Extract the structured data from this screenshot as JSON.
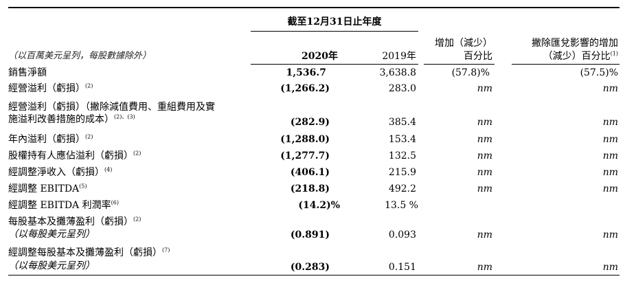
{
  "header": {
    "period_title": "截至12月31日止年度",
    "unit_note": "（以百萬美元呈列，每股數據除外）",
    "year_2020": "2020年",
    "year_2019": "2019年",
    "change_line1": "增加（減少）",
    "change_line2": "百分比",
    "fx_line1": "撇除匯兌影響的增加",
    "fx_line2": "（減少）百分比",
    "fx_note": "(1)"
  },
  "rows": [
    {
      "label": "銷售淨額",
      "note": "",
      "v2020": "1,536.7",
      "v2019": "3,638.8",
      "change": "(57.8)%",
      "fx": "(57.5)%"
    },
    {
      "label": "經營溢利（虧損）",
      "note": "(2)",
      "v2020": "(1,266.2)",
      "v2019": "283.0",
      "change": "nm",
      "fx": "nm"
    },
    {
      "label": "經營溢利（虧損）（撇除減值費用、重組費用及實",
      "label2": "施溢利改善措施的成本）",
      "note": "(2)、(3)",
      "v2020": "(282.9)",
      "v2019": "385.4",
      "change": "nm",
      "fx": "nm"
    },
    {
      "label": "年內溢利（虧損）",
      "note": "(2)",
      "v2020": "(1,288.0)",
      "v2019": "153.4",
      "change": "nm",
      "fx": "nm"
    },
    {
      "label": "股權持有人應佔溢利（虧損）",
      "note": "(2)",
      "v2020": "(1,277.7)",
      "v2019": "132.5",
      "change": "nm",
      "fx": "nm"
    },
    {
      "label": "經調整淨收入（虧損）",
      "note": "(4)",
      "v2020": "(406.1)",
      "v2019": "215.9",
      "change": "nm",
      "fx": "nm"
    },
    {
      "label": "經調整 EBITDA",
      "note": "(5)",
      "v2020": "(218.8)",
      "v2019": "492.2",
      "change": "nm",
      "fx": "nm"
    },
    {
      "label": "經調整 EBITDA 利潤率",
      "note": "(6)",
      "v2020": "(14.2)%",
      "v2019": "13.5 %",
      "change": "",
      "fx": ""
    },
    {
      "label": "每股基本及攤薄盈利（虧損）",
      "note": "(2)",
      "label2": "（以每股美元呈列）",
      "v2020": "(0.891)",
      "v2019": "0.093",
      "change": "nm",
      "fx": "nm"
    },
    {
      "label": "經調整每股基本及攤薄盈利（虧損）",
      "note": "(7)",
      "label2": "（以每股美元呈列）",
      "v2020": "(0.283)",
      "v2019": "0.151",
      "change": "nm",
      "fx": "nm"
    }
  ]
}
